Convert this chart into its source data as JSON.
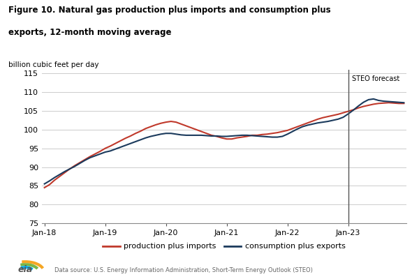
{
  "title_line1": "Figure 10. Natural gas production plus imports and consumption plus",
  "title_line2": "exports, 12-month moving average",
  "ylabel": "billion cubic feet per day",
  "ylim": [
    75,
    116
  ],
  "yticks": [
    75,
    80,
    85,
    90,
    95,
    100,
    105,
    110,
    115
  ],
  "steo_label": "STEO forecast",
  "source_text": "Data source: U.S. Energy Information Administration, Short-Term Energy Outlook (STEO)",
  "legend_prod": "production plus imports",
  "legend_cons": "consumption plus exports",
  "color_prod": "#c0392b",
  "color_cons": "#1b3a5c",
  "background_color": "#ffffff",
  "grid_color": "#cccccc",
  "vline_color": "#555555",
  "vline_x": 60,
  "months_prod": [
    84.5,
    85.3,
    86.5,
    87.5,
    88.5,
    89.5,
    90.4,
    91.2,
    92.0,
    92.8,
    93.5,
    94.2,
    95.0,
    95.6,
    96.3,
    97.0,
    97.7,
    98.3,
    99.0,
    99.6,
    100.3,
    100.8,
    101.3,
    101.7,
    102.0,
    102.2,
    102.0,
    101.5,
    101.0,
    100.5,
    100.0,
    99.5,
    99.0,
    98.5,
    98.2,
    97.8,
    97.5,
    97.5,
    97.8,
    98.0,
    98.2,
    98.5,
    98.5,
    98.7,
    98.8,
    99.0,
    99.2,
    99.5,
    99.8,
    100.3,
    100.8,
    101.3,
    101.8,
    102.3,
    102.8,
    103.2,
    103.5,
    103.8,
    104.1,
    104.5,
    104.9,
    105.3,
    105.8,
    106.2,
    106.5,
    106.8,
    107.0,
    107.1,
    107.2,
    107.1,
    107.0,
    107.0
  ],
  "months_cons": [
    85.5,
    86.3,
    87.2,
    88.0,
    88.8,
    89.5,
    90.2,
    91.0,
    91.8,
    92.5,
    93.0,
    93.5,
    94.0,
    94.3,
    94.8,
    95.3,
    95.8,
    96.3,
    96.8,
    97.3,
    97.8,
    98.2,
    98.5,
    98.8,
    99.0,
    99.0,
    98.8,
    98.6,
    98.5,
    98.5,
    98.5,
    98.5,
    98.4,
    98.3,
    98.3,
    98.2,
    98.2,
    98.3,
    98.4,
    98.5,
    98.5,
    98.4,
    98.3,
    98.2,
    98.1,
    98.0,
    98.0,
    98.2,
    98.8,
    99.5,
    100.2,
    100.8,
    101.2,
    101.5,
    101.8,
    102.0,
    102.2,
    102.5,
    102.8,
    103.3,
    104.2,
    105.2,
    106.3,
    107.3,
    108.0,
    108.2,
    107.8,
    107.6,
    107.5,
    107.4,
    107.3,
    107.2
  ],
  "xtick_positions": [
    0,
    12,
    24,
    36,
    48,
    60
  ],
  "xtick_labels": [
    "Jan-18",
    "Jan-19",
    "Jan-20",
    "Jan-21",
    "Jan-22",
    "Jan-23"
  ]
}
